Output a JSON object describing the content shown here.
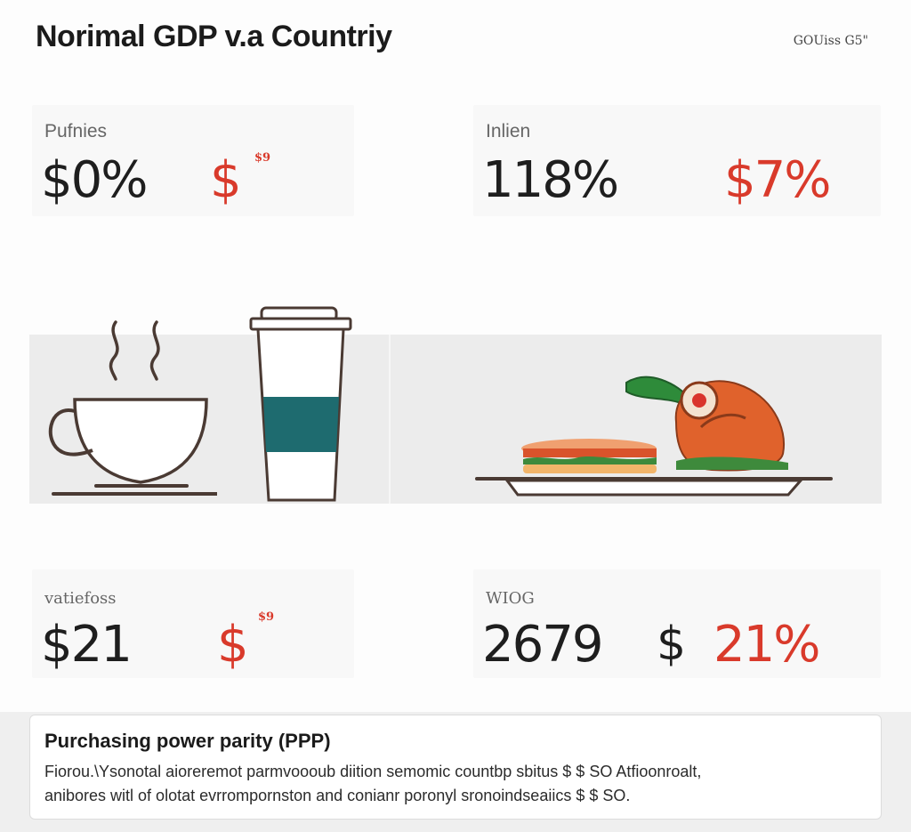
{
  "header": {
    "title": "Norimal GDP v.a Countriy",
    "source": "GOUiss G5\""
  },
  "cards": [
    {
      "label": "Pufnies",
      "value": "$0%",
      "accent": "$",
      "sup": "$9"
    },
    {
      "label": "Inlien",
      "value": "118%",
      "accent": "$7%"
    },
    {
      "label": "vatiefoss",
      "value": "$21",
      "accent": "$",
      "sup": "$9"
    },
    {
      "label": "WIOG",
      "value": "2679",
      "dollar": "$",
      "accent": "21%"
    }
  ],
  "illustrations": {
    "left": [
      "coffee-cup-icon",
      "takeaway-cup-icon"
    ],
    "right": [
      "sandwich-icon",
      "roast-chicken-icon"
    ]
  },
  "colors": {
    "accent": "#d93a2b",
    "teal_band": "#1e6b6f",
    "text": "#1e1e1e"
  },
  "ppp": {
    "title": "Purchasing power parity (PPP)",
    "line1": "Fiorou.\\Ysonotal aioreremot parmvoooub diition semomic countbp sbitus $ $ SO Atfioonroalt,",
    "line2": "anibores witl of olotat evrrompornston and conianr poronyl sronoindseaiics $ $ SO."
  }
}
